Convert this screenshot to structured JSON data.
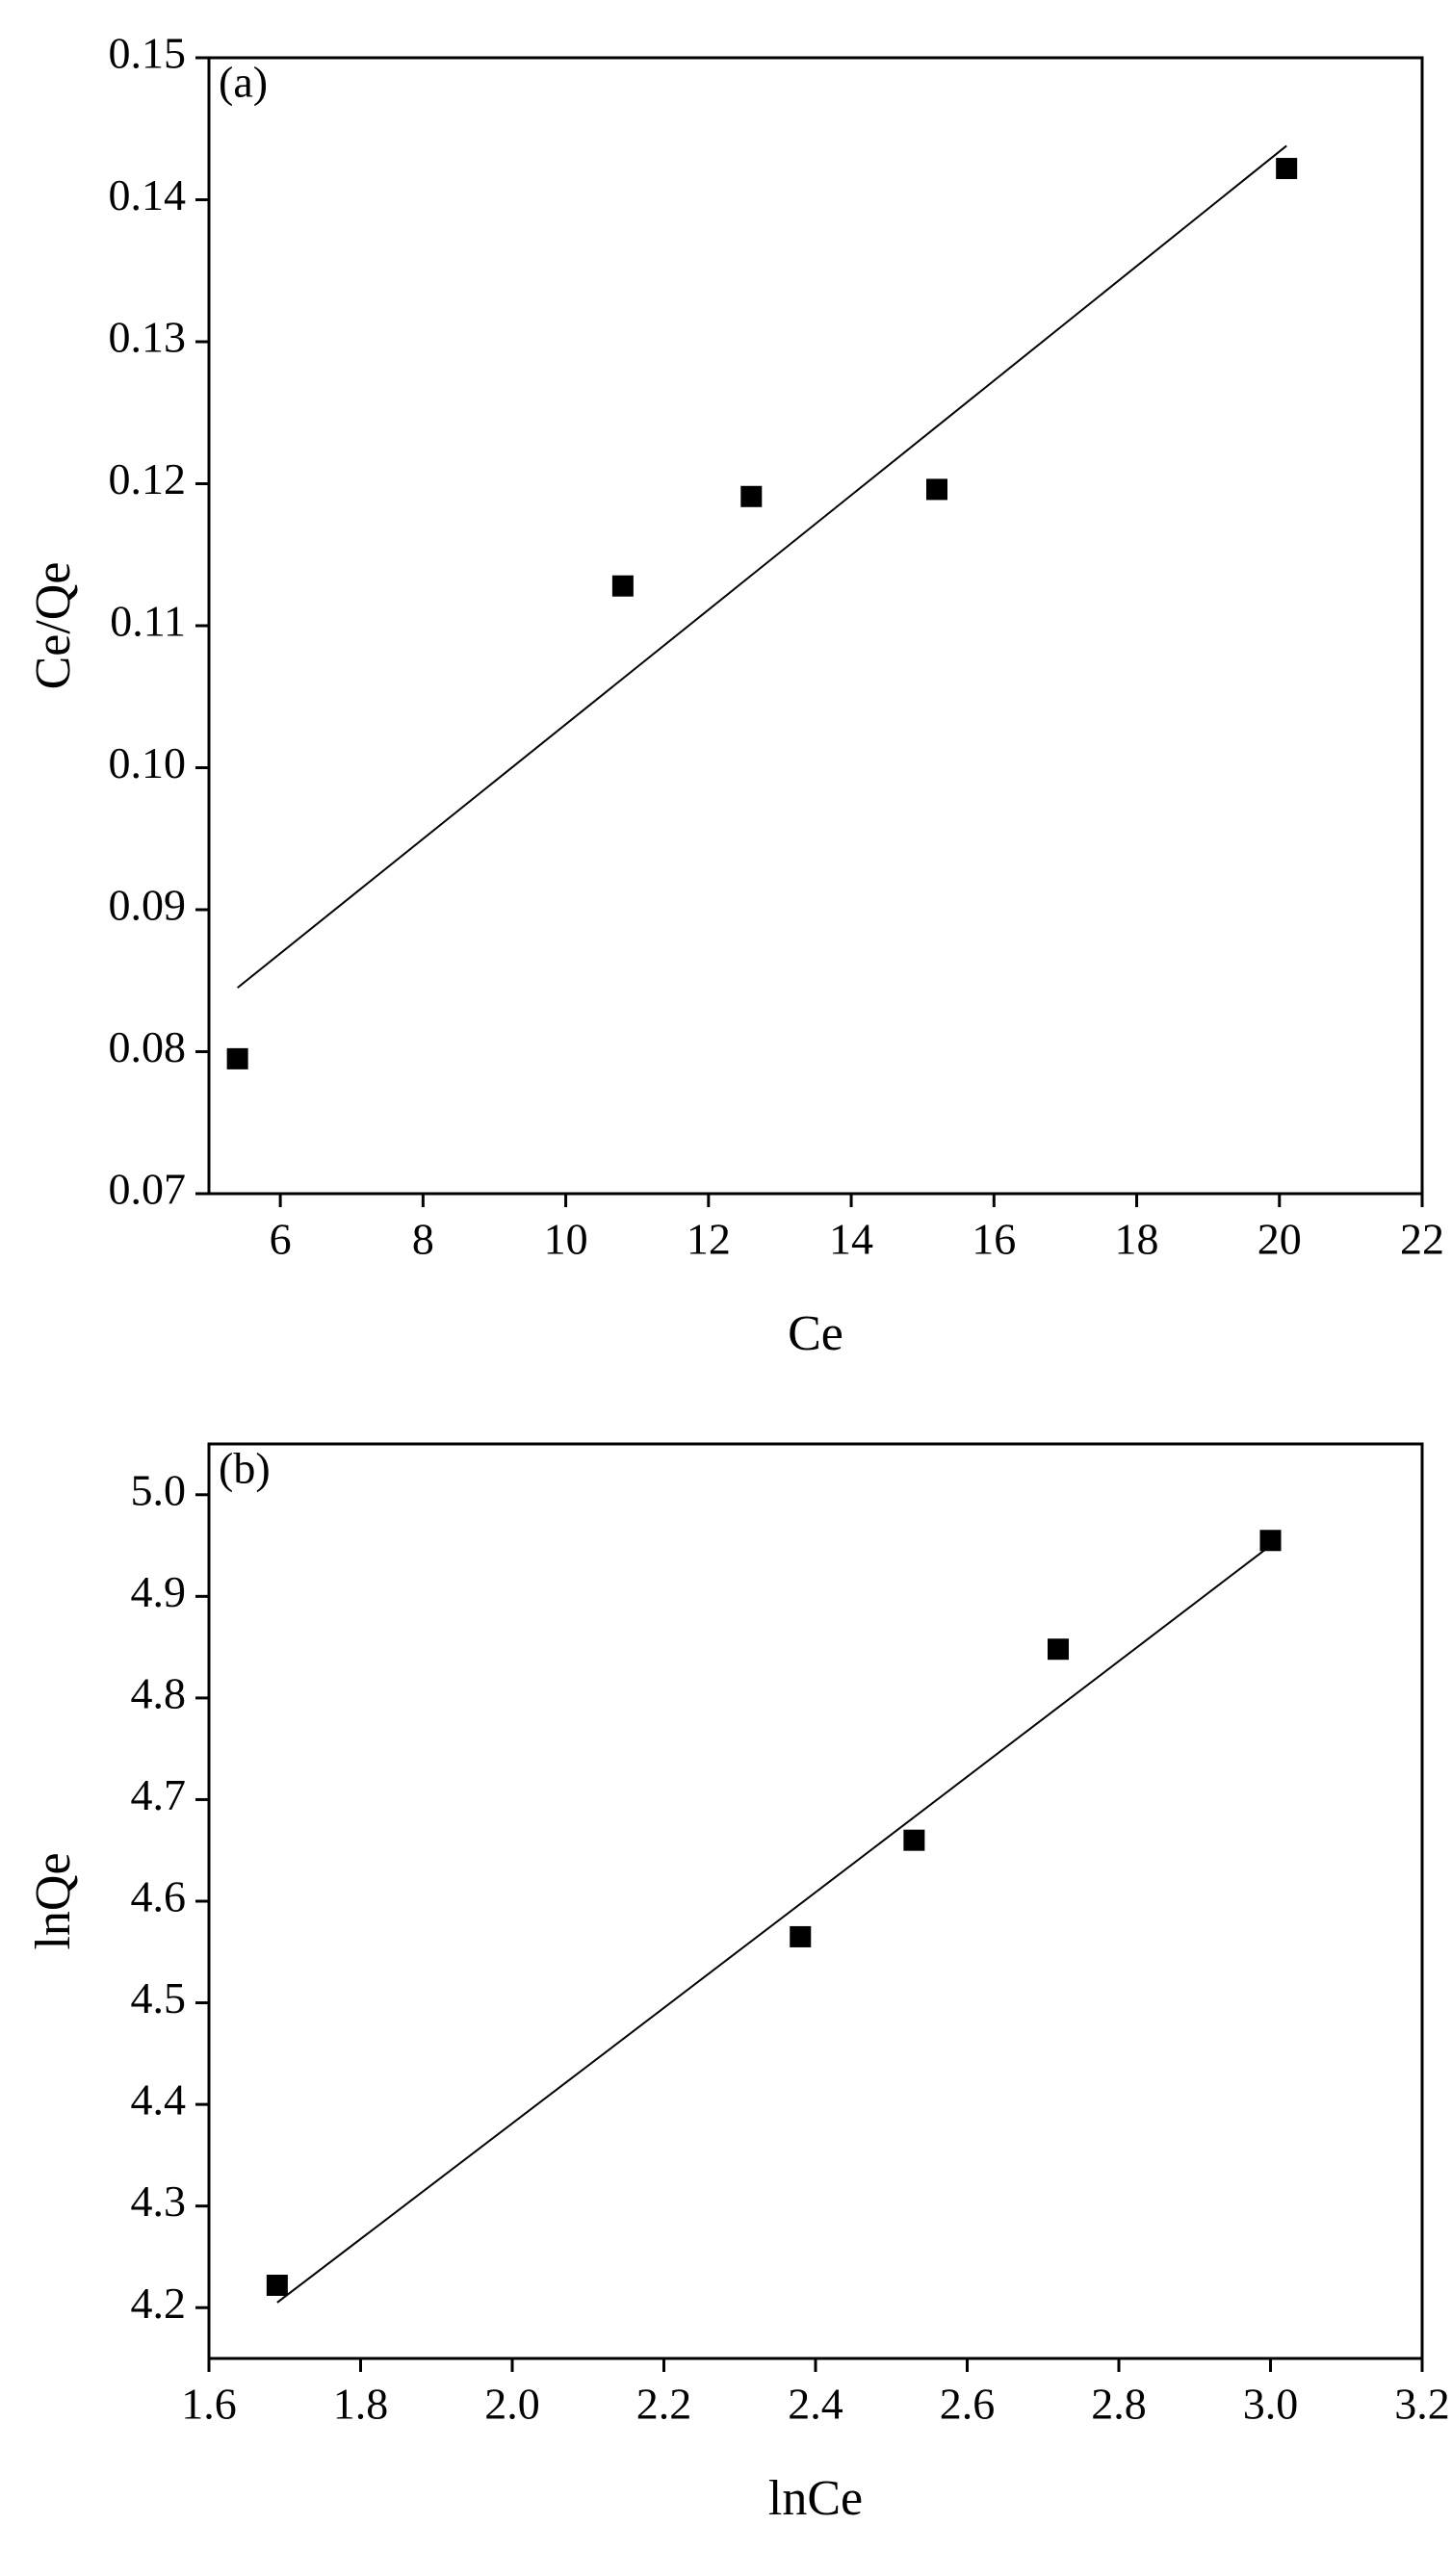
{
  "chart_data": [
    {
      "type": "scatter",
      "annotation": "(a)",
      "x_label": "Ce",
      "y_label": "Ce/Qe",
      "xlim": [
        5,
        22
      ],
      "xticks": [
        6,
        8,
        10,
        12,
        14,
        16,
        18,
        20,
        22
      ],
      "ylim": [
        0.07,
        0.15
      ],
      "yticks": [
        0.07,
        0.08,
        0.09,
        {
          "value": 0.1,
          "label": "0.10"
        },
        0.11,
        0.12,
        0.13,
        0.14,
        0.15
      ],
      "series": [
        {
          "mode": "markers",
          "color": "#000000",
          "x": [
            5.4,
            10.8,
            12.6,
            15.2,
            20.1
          ],
          "values": [
            0.0795,
            0.1128,
            0.1191,
            0.1196,
            0.1422
          ]
        },
        {
          "mode": "line",
          "color": "#000000",
          "x": [
            5.4,
            20.1
          ],
          "values": [
            0.0845,
            0.1438
          ]
        }
      ]
    },
    {
      "type": "scatter",
      "annotation": "(b)",
      "x_label": "lnCe",
      "y_label": "lnQe",
      "xlim": [
        1.6,
        3.2
      ],
      "xticks": [
        1.6,
        1.8,
        {
          "value": 2.0,
          "label": "2.0"
        },
        2.2,
        2.4,
        2.6,
        2.8,
        {
          "value": 3.0,
          "label": "3.0"
        },
        3.2
      ],
      "ylim": [
        4.15,
        5.05
      ],
      "yticks": [
        4.2,
        4.3,
        4.4,
        4.5,
        4.6,
        4.7,
        4.8,
        4.9,
        {
          "value": 5.0,
          "label": "5.0"
        }
      ],
      "series": [
        {
          "mode": "markers",
          "color": "#000000",
          "x": [
            1.69,
            2.38,
            2.53,
            2.72,
            3.0
          ],
          "values": [
            4.222,
            4.565,
            4.66,
            4.848,
            4.955
          ]
        },
        {
          "mode": "line",
          "color": "#000000",
          "x": [
            1.69,
            3.0
          ],
          "values": [
            4.205,
            4.95
          ]
        }
      ]
    }
  ]
}
